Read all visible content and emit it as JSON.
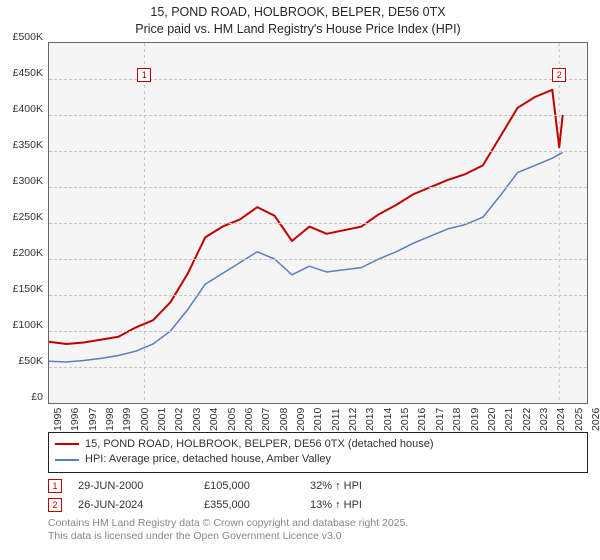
{
  "title": {
    "line1": "15, POND ROAD, HOLBROOK, BELPER, DE56 0TX",
    "line2": "Price paid vs. HM Land Registry's House Price Index (HPI)"
  },
  "chart": {
    "type": "line",
    "background_color": "#f5f5f5",
    "grid_color": "#c5c5c5",
    "border_color": "#666666",
    "y": {
      "min": 0,
      "max": 500000,
      "step": 50000,
      "labels": [
        "£0",
        "£50K",
        "£100K",
        "£150K",
        "£200K",
        "£250K",
        "£300K",
        "£350K",
        "£400K",
        "£450K",
        "£500K"
      ]
    },
    "x": {
      "min": 1995,
      "max": 2026,
      "step": 1,
      "labels": [
        "1995",
        "1996",
        "1997",
        "1998",
        "1999",
        "2000",
        "2001",
        "2002",
        "2003",
        "2004",
        "2005",
        "2006",
        "2007",
        "2008",
        "2009",
        "2010",
        "2011",
        "2012",
        "2013",
        "2014",
        "2015",
        "2016",
        "2017",
        "2018",
        "2019",
        "2020",
        "2021",
        "2022",
        "2023",
        "2024",
        "2025",
        "2026"
      ]
    },
    "series": [
      {
        "name": "15, POND ROAD, HOLBROOK, BELPER, DE56 0TX (detached house)",
        "color": "#c00000",
        "line_width": 2,
        "points": [
          [
            1995,
            85000
          ],
          [
            1996,
            82000
          ],
          [
            1997,
            84000
          ],
          [
            1998,
            88000
          ],
          [
            1999,
            92000
          ],
          [
            2000,
            105000
          ],
          [
            2001,
            115000
          ],
          [
            2002,
            140000
          ],
          [
            2003,
            180000
          ],
          [
            2004,
            230000
          ],
          [
            2005,
            245000
          ],
          [
            2006,
            255000
          ],
          [
            2007,
            272000
          ],
          [
            2008,
            260000
          ],
          [
            2009,
            225000
          ],
          [
            2010,
            245000
          ],
          [
            2011,
            235000
          ],
          [
            2012,
            240000
          ],
          [
            2013,
            245000
          ],
          [
            2014,
            262000
          ],
          [
            2015,
            275000
          ],
          [
            2016,
            290000
          ],
          [
            2017,
            300000
          ],
          [
            2018,
            310000
          ],
          [
            2019,
            318000
          ],
          [
            2020,
            330000
          ],
          [
            2021,
            370000
          ],
          [
            2022,
            410000
          ],
          [
            2023,
            425000
          ],
          [
            2024,
            435000
          ],
          [
            2024.4,
            355000
          ],
          [
            2024.6,
            400000
          ]
        ]
      },
      {
        "name": "HPI: Average price, detached house, Amber Valley",
        "color": "#5b7fbb",
        "line_width": 1.5,
        "points": [
          [
            1995,
            58000
          ],
          [
            1996,
            57000
          ],
          [
            1997,
            59000
          ],
          [
            1998,
            62000
          ],
          [
            1999,
            66000
          ],
          [
            2000,
            72000
          ],
          [
            2001,
            82000
          ],
          [
            2002,
            100000
          ],
          [
            2003,
            130000
          ],
          [
            2004,
            165000
          ],
          [
            2005,
            180000
          ],
          [
            2006,
            195000
          ],
          [
            2007,
            210000
          ],
          [
            2008,
            200000
          ],
          [
            2009,
            178000
          ],
          [
            2010,
            190000
          ],
          [
            2011,
            182000
          ],
          [
            2012,
            185000
          ],
          [
            2013,
            188000
          ],
          [
            2014,
            200000
          ],
          [
            2015,
            210000
          ],
          [
            2016,
            222000
          ],
          [
            2017,
            232000
          ],
          [
            2018,
            242000
          ],
          [
            2019,
            248000
          ],
          [
            2020,
            258000
          ],
          [
            2021,
            288000
          ],
          [
            2022,
            320000
          ],
          [
            2023,
            330000
          ],
          [
            2024,
            340000
          ],
          [
            2024.6,
            348000
          ]
        ]
      }
    ],
    "markers": [
      {
        "label": "1",
        "year": 2000.5,
        "y_value": 455000
      },
      {
        "label": "2",
        "year": 2024.4,
        "y_value": 455000
      }
    ]
  },
  "legend": {
    "items": [
      {
        "color": "#c00000",
        "label": "15, POND ROAD, HOLBROOK, BELPER, DE56 0TX (detached house)"
      },
      {
        "color": "#5b7fbb",
        "label": "HPI: Average price, detached house, Amber Valley"
      }
    ]
  },
  "events": [
    {
      "num": "1",
      "date": "29-JUN-2000",
      "price": "£105,000",
      "delta": "32% ↑ HPI"
    },
    {
      "num": "2",
      "date": "26-JUN-2024",
      "price": "£355,000",
      "delta": "13% ↑ HPI"
    }
  ],
  "credit": {
    "line1": "Contains HM Land Registry data © Crown copyright and database right 2025.",
    "line2": "This data is licensed under the Open Government Licence v3.0"
  }
}
